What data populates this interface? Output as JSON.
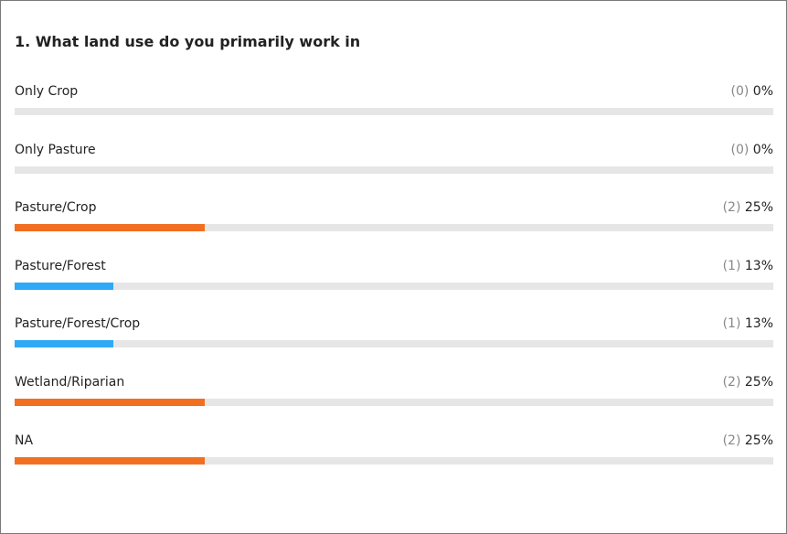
{
  "question": {
    "title": "1. What land use do you primarily work in"
  },
  "options": [
    {
      "label": "Only Crop",
      "count_text": "(0)",
      "percent_text": "0%",
      "fraction": 0.0,
      "color": "#e6e6e6"
    },
    {
      "label": "Only Pasture",
      "count_text": "(0)",
      "percent_text": "0%",
      "fraction": 0.0,
      "color": "#e6e6e6"
    },
    {
      "label": "Pasture/Crop",
      "count_text": "(2)",
      "percent_text": "25%",
      "fraction": 0.25,
      "color": "#f26f21"
    },
    {
      "label": "Pasture/Forest",
      "count_text": "(1)",
      "percent_text": "13%",
      "fraction": 0.13,
      "color": "#2ea9f5"
    },
    {
      "label": "Pasture/Forest/Crop",
      "count_text": "(1)",
      "percent_text": "13%",
      "fraction": 0.13,
      "color": "#2ea9f5"
    },
    {
      "label": "Wetland/Riparian",
      "count_text": "(2)",
      "percent_text": "25%",
      "fraction": 0.25,
      "color": "#f26f21"
    },
    {
      "label": "NA",
      "count_text": "(2)",
      "percent_text": "25%",
      "fraction": 0.25,
      "color": "#f26f21"
    }
  ]
}
